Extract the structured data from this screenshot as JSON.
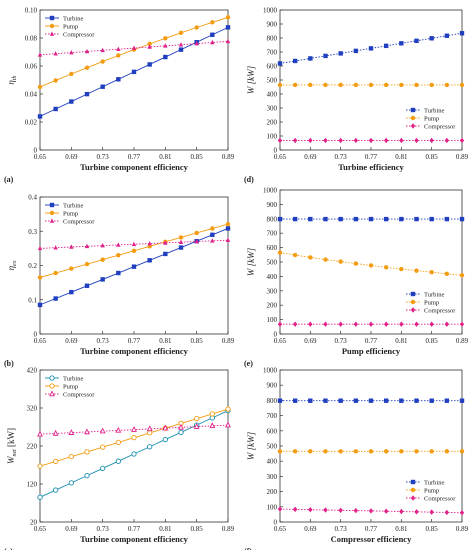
{
  "chart_data": [
    {
      "type": "line",
      "panel_label": "(a)",
      "xlabel": "Turbine component efficiency",
      "ylabel": "η_th",
      "xlim": [
        0.65,
        0.89
      ],
      "ylim": [
        0,
        0.1
      ],
      "xticks": [
        "0.65",
        "0.69",
        "0.73",
        "0.77",
        "0.81",
        "0.85",
        "0.89"
      ],
      "yticks": [
        "0",
        "0.02",
        "0.04",
        "0.06",
        "0.08",
        "0.10"
      ],
      "legend_position": "top-left",
      "x": [
        0.65,
        0.67,
        0.69,
        0.71,
        0.73,
        0.75,
        0.77,
        0.79,
        0.81,
        0.83,
        0.85,
        0.87,
        0.89
      ],
      "series": [
        {
          "name": "Turbine",
          "color": "#1f3fbf",
          "marker": "square",
          "style": "solid",
          "values": [
            0.024,
            0.0293,
            0.0346,
            0.0399,
            0.0452,
            0.0505,
            0.0558,
            0.0611,
            0.0664,
            0.0717,
            0.077,
            0.0823,
            0.0876
          ]
        },
        {
          "name": "Pump",
          "color": "#f39c12",
          "marker": "circle",
          "style": "solid",
          "values": [
            0.045,
            0.0497,
            0.0543,
            0.0588,
            0.0632,
            0.0675,
            0.0717,
            0.0758,
            0.0798,
            0.0837,
            0.0875,
            0.0912,
            0.0948
          ]
        },
        {
          "name": "Compressor",
          "color": "#e0218a",
          "marker": "triangle",
          "style": "dotted",
          "values": [
            0.068,
            0.0688,
            0.0696,
            0.0704,
            0.0712,
            0.072,
            0.0728,
            0.0736,
            0.0744,
            0.0752,
            0.076,
            0.0768,
            0.0776
          ]
        }
      ]
    },
    {
      "type": "line",
      "panel_label": "(b)",
      "xlabel": "Turbine component efficiency",
      "ylabel": "η_ex",
      "xlim": [
        0.65,
        0.89
      ],
      "ylim": [
        0,
        0.4
      ],
      "xticks": [
        "0.65",
        "0.69",
        "0.73",
        "0.77",
        "0.81",
        "0.85",
        "0.89"
      ],
      "yticks": [
        "0",
        "0.1",
        "0.2",
        "0.3",
        "0.4"
      ],
      "legend_position": "top-left",
      "x": [
        0.65,
        0.67,
        0.69,
        0.71,
        0.73,
        0.75,
        0.77,
        0.79,
        0.81,
        0.83,
        0.85,
        0.87,
        0.89
      ],
      "series": [
        {
          "name": "Turbine",
          "color": "#1f3fbf",
          "marker": "square",
          "style": "solid",
          "values": [
            0.085,
            0.1036,
            0.1222,
            0.1408,
            0.1594,
            0.178,
            0.1966,
            0.2152,
            0.2338,
            0.2524,
            0.271,
            0.2896,
            0.3082
          ]
        },
        {
          "name": "Pump",
          "color": "#f39c12",
          "marker": "circle",
          "style": "solid",
          "values": [
            0.165,
            0.178,
            0.191,
            0.204,
            0.217,
            0.23,
            0.243,
            0.256,
            0.269,
            0.282,
            0.295,
            0.308,
            0.321
          ]
        },
        {
          "name": "Compressor",
          "color": "#e0218a",
          "marker": "triangle",
          "style": "dotted",
          "values": [
            0.25,
            0.252,
            0.254,
            0.256,
            0.258,
            0.26,
            0.262,
            0.264,
            0.266,
            0.268,
            0.27,
            0.272,
            0.274
          ]
        }
      ]
    },
    {
      "type": "line",
      "panel_label": "(c)",
      "xlabel": "Turbine component efficiency",
      "ylabel": "W_net [kW]",
      "xlim": [
        0.65,
        0.89
      ],
      "ylim": [
        20,
        420
      ],
      "xticks": [
        "0.65",
        "0.69",
        "0.73",
        "0.77",
        "0.81",
        "0.85",
        "0.89"
      ],
      "yticks": [
        "20",
        "120",
        "220",
        "320",
        "420"
      ],
      "legend_position": "top-left",
      "x": [
        0.65,
        0.67,
        0.69,
        0.71,
        0.73,
        0.75,
        0.77,
        0.79,
        0.81,
        0.83,
        0.85,
        0.87,
        0.89
      ],
      "series": [
        {
          "name": "Turbine",
          "color": "#1b8fb0",
          "marker": "circle-open",
          "style": "solid",
          "values": [
            85,
            104,
            123,
            142,
            161,
            180,
            199,
            218,
            237,
            256,
            275,
            294,
            313
          ]
        },
        {
          "name": "Pump",
          "color": "#f39c12",
          "marker": "circle-open",
          "style": "solid",
          "values": [
            167,
            179.5,
            192,
            204.5,
            217,
            229.5,
            242,
            254.5,
            267,
            279.5,
            292,
            304.5,
            317
          ]
        },
        {
          "name": "Compressor",
          "color": "#e0218a",
          "marker": "triangle-open",
          "style": "dotted",
          "values": [
            251,
            253,
            255,
            257,
            259,
            261,
            263,
            265,
            267,
            269,
            271,
            273,
            275
          ]
        }
      ]
    },
    {
      "type": "line",
      "panel_label": "(d)",
      "xlabel": "Turbine efficiency",
      "ylabel": "W [kW]",
      "xlim": [
        0.65,
        0.89
      ],
      "ylim": [
        0,
        1000
      ],
      "xticks": [
        "0.65",
        "0.69",
        "0.73",
        "0.77",
        "0.81",
        "0.85",
        "0.89"
      ],
      "yticks": [
        "0",
        "100",
        "200",
        "300",
        "400",
        "500",
        "600",
        "700",
        "800",
        "900",
        "1000"
      ],
      "legend_position": "bottom-right",
      "x": [
        0.65,
        0.67,
        0.69,
        0.71,
        0.73,
        0.75,
        0.77,
        0.79,
        0.81,
        0.83,
        0.85,
        0.87,
        0.89
      ],
      "series": [
        {
          "name": "Turbine",
          "color": "#1f3fbf",
          "marker": "square",
          "style": "dotted",
          "values": [
            618,
            636,
            654,
            672,
            690,
            708,
            726,
            744,
            762,
            780,
            798,
            816,
            834
          ]
        },
        {
          "name": "Pump",
          "color": "#f39c12",
          "marker": "circle",
          "style": "dotted",
          "values": [
            465,
            465,
            465,
            465,
            465,
            465,
            465,
            465,
            465,
            465,
            465,
            465,
            465
          ]
        },
        {
          "name": "Compressor",
          "color": "#e0218a",
          "marker": "diamond",
          "style": "dotted",
          "values": [
            68,
            68,
            68,
            68,
            68,
            68,
            68,
            68,
            68,
            68,
            68,
            68,
            68
          ]
        }
      ]
    },
    {
      "type": "line",
      "panel_label": "(e)",
      "xlabel": "Pump efficiency",
      "ylabel": "W [kW]",
      "xlim": [
        0.65,
        0.89
      ],
      "ylim": [
        0,
        1000
      ],
      "xticks": [
        "0.65",
        "0.69",
        "0.73",
        "0.77",
        "0.81",
        "0.85",
        "0.89"
      ],
      "yticks": [
        "0",
        "100",
        "200",
        "300",
        "400",
        "500",
        "600",
        "700",
        "800",
        "900",
        "1000"
      ],
      "legend_position": "bottom-right",
      "x": [
        0.65,
        0.67,
        0.69,
        0.71,
        0.73,
        0.75,
        0.77,
        0.79,
        0.81,
        0.83,
        0.85,
        0.87,
        0.89
      ],
      "series": [
        {
          "name": "Turbine",
          "color": "#1f3fbf",
          "marker": "square",
          "style": "dotted",
          "values": [
            798,
            798,
            798,
            798,
            798,
            798,
            798,
            798,
            798,
            798,
            798,
            798,
            798
          ]
        },
        {
          "name": "Pump",
          "color": "#f39c12",
          "marker": "circle",
          "style": "dotted",
          "values": [
            565,
            548,
            532,
            517,
            503,
            489,
            476,
            463,
            451,
            440,
            429,
            418,
            408
          ]
        },
        {
          "name": "Compressor",
          "color": "#e0218a",
          "marker": "diamond",
          "style": "dotted",
          "values": [
            68,
            68,
            68,
            68,
            68,
            68,
            68,
            68,
            68,
            68,
            68,
            68,
            68
          ]
        }
      ]
    },
    {
      "type": "line",
      "panel_label": "(f)",
      "xlabel": "Compressor efficiency",
      "ylabel": "W [kW]",
      "xlim": [
        0.65,
        0.89
      ],
      "ylim": [
        0,
        1000
      ],
      "xticks": [
        "0.65",
        "0.69",
        "0.73",
        "0.77",
        "0.81",
        "0.85",
        "0.89"
      ],
      "yticks": [
        "0",
        "100",
        "200",
        "300",
        "400",
        "500",
        "600",
        "700",
        "800",
        "900",
        "1000"
      ],
      "legend_position": "bottom-right",
      "x": [
        0.65,
        0.67,
        0.69,
        0.71,
        0.73,
        0.75,
        0.77,
        0.79,
        0.81,
        0.83,
        0.85,
        0.87,
        0.89
      ],
      "series": [
        {
          "name": "Turbine",
          "color": "#1f3fbf",
          "marker": "square",
          "style": "dotted",
          "values": [
            798,
            798,
            798,
            798,
            798,
            798,
            798,
            798,
            798,
            798,
            798,
            798,
            798
          ]
        },
        {
          "name": "Pump",
          "color": "#f39c12",
          "marker": "circle",
          "style": "dotted",
          "values": [
            465,
            465,
            465,
            465,
            465,
            465,
            465,
            465,
            465,
            465,
            465,
            465,
            465
          ]
        },
        {
          "name": "Compressor",
          "color": "#e0218a",
          "marker": "diamond",
          "style": "dotted",
          "values": [
            85,
            83,
            81,
            79,
            77,
            75,
            73,
            71,
            69,
            67,
            65,
            63,
            61
          ]
        }
      ]
    }
  ]
}
